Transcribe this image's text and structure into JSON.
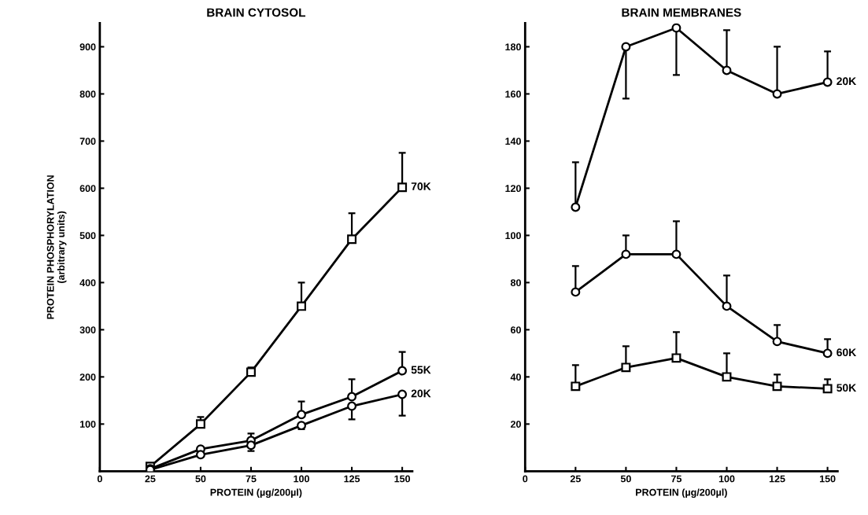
{
  "chart_data": [
    {
      "type": "line",
      "title": "BRAIN CYTOSOL",
      "xlabel": "PROTEIN (µg/200µl)",
      "ylabel": "PROTEIN PHOSPHORYLATION\n(arbitrary units)",
      "x": [
        25,
        50,
        75,
        100,
        125,
        150
      ],
      "xlim": [
        0,
        155
      ],
      "xticks": [
        0,
        25,
        50,
        75,
        100,
        125,
        150
      ],
      "ylim": [
        0,
        950
      ],
      "yticks": [
        100,
        200,
        300,
        400,
        500,
        600,
        700,
        800,
        900
      ],
      "grid": false,
      "legend": false,
      "series": [
        {
          "name": "70K",
          "color": "#000000",
          "marker": "square",
          "values": [
            10,
            100,
            210,
            350,
            492,
            602
          ],
          "errors": [
            null,
            [
              100,
              115
            ],
            [
              210,
              220
            ],
            [
              350,
              400
            ],
            [
              492,
              547
            ],
            [
              602,
              675
            ]
          ]
        },
        {
          "name": "55K",
          "color": "#000000",
          "marker": "circle",
          "values": [
            5,
            47,
            65,
            120,
            158,
            213
          ],
          "errors": [
            null,
            null,
            [
              65,
              80
            ],
            [
              120,
              148
            ],
            [
              158,
              195
            ],
            [
              213,
              253
            ]
          ]
        },
        {
          "name": "20K",
          "color": "#000000",
          "marker": "circle",
          "values": [
            3,
            35,
            55,
            97,
            138,
            163
          ],
          "errors": [
            null,
            null,
            [
              43,
              55
            ],
            [
              89,
              97
            ],
            [
              110,
              138
            ],
            [
              118,
              163
            ]
          ]
        }
      ]
    },
    {
      "type": "line",
      "title": "BRAIN MEMBRANES",
      "xlabel": "PROTEIN (µg/200µl)",
      "x": [
        25,
        50,
        75,
        100,
        125,
        150
      ],
      "xlim": [
        0,
        155
      ],
      "xticks": [
        0,
        25,
        50,
        75,
        100,
        125,
        150
      ],
      "ylim": [
        0,
        190
      ],
      "yticks": [
        20,
        40,
        60,
        80,
        100,
        120,
        140,
        160,
        180
      ],
      "grid": false,
      "legend": false,
      "series": [
        {
          "name": "20K",
          "color": "#000000",
          "marker": "circle",
          "values": [
            112,
            180,
            188,
            170,
            160,
            165
          ],
          "errors": [
            [
              112,
              131
            ],
            [
              158,
              180
            ],
            [
              168,
              188
            ],
            [
              170,
              187
            ],
            [
              160,
              180
            ],
            [
              165,
              178
            ]
          ]
        },
        {
          "name": "60K",
          "color": "#000000",
          "marker": "circle",
          "values": [
            76,
            92,
            92,
            70,
            55,
            50
          ],
          "errors": [
            [
              76,
              87
            ],
            [
              92,
              100
            ],
            [
              92,
              106
            ],
            [
              70,
              83
            ],
            [
              55,
              62
            ],
            [
              50,
              56
            ]
          ]
        },
        {
          "name": "50K",
          "color": "#000000",
          "marker": "square",
          "values": [
            36,
            44,
            48,
            40,
            36,
            35
          ],
          "errors": [
            [
              36,
              45
            ],
            [
              44,
              53
            ],
            [
              48,
              59
            ],
            [
              40,
              50
            ],
            [
              36,
              41
            ],
            [
              35,
              39
            ]
          ]
        }
      ]
    }
  ]
}
